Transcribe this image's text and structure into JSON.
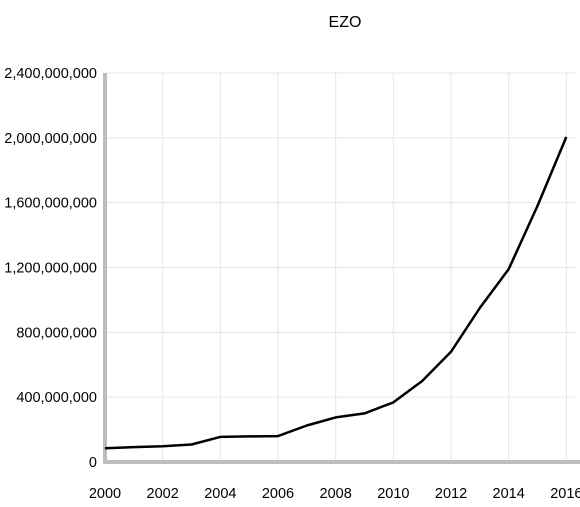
{
  "chart_data": {
    "type": "line",
    "title": "EZO",
    "xlabel": "",
    "ylabel": "",
    "xlim": [
      2000,
      2016.3
    ],
    "ylim": [
      0,
      2400000000
    ],
    "grid": true,
    "x_ticks": [
      2000,
      2002,
      2004,
      2006,
      2008,
      2010,
      2012,
      2014,
      2016
    ],
    "x_tick_labels": [
      "2000",
      "2002",
      "2004",
      "2006",
      "2008",
      "2010",
      "2012",
      "2014",
      "2016"
    ],
    "y_ticks": [
      0,
      400000000,
      800000000,
      1200000000,
      1600000000,
      2000000000,
      2400000000
    ],
    "y_tick_labels": [
      "0",
      "400,000,000",
      "800,000,000",
      "1,200,000,000",
      "1,600,000,000",
      "2,000,000,000",
      "2,400,000,000"
    ],
    "series": [
      {
        "color": "#000000",
        "x": [
          2000,
          2001,
          2002,
          2003,
          2004,
          2005,
          2006,
          2007,
          2008,
          2009,
          2010,
          2011,
          2012,
          2013,
          2014,
          2015,
          2016
        ],
        "values": [
          85000000,
          92000000,
          97000000,
          108000000,
          155000000,
          158000000,
          160000000,
          225000000,
          275000000,
          300000000,
          368000000,
          500000000,
          680000000,
          950000000,
          1190000000,
          1580000000,
          2005000000
        ]
      }
    ]
  }
}
